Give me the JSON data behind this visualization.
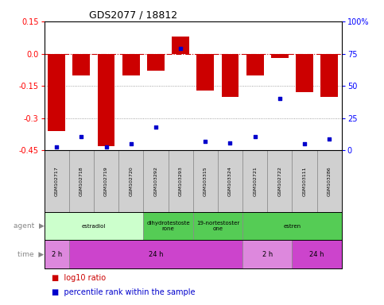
{
  "title": "GDS2077 / 18812",
  "samples": [
    "GSM102717",
    "GSM102718",
    "GSM102719",
    "GSM102720",
    "GSM103292",
    "GSM103293",
    "GSM103315",
    "GSM103324",
    "GSM102721",
    "GSM102722",
    "GSM103111",
    "GSM103286"
  ],
  "log10_ratio": [
    -0.36,
    -0.1,
    -0.43,
    -0.1,
    -0.08,
    0.08,
    -0.17,
    -0.2,
    -0.1,
    -0.02,
    -0.18,
    -0.2
  ],
  "percentile_rank": [
    3,
    11,
    3,
    5,
    18,
    79,
    7,
    6,
    11,
    40,
    5,
    9
  ],
  "ylim_left": [
    -0.45,
    0.15
  ],
  "ylim_right": [
    0,
    100
  ],
  "bar_color": "#cc0000",
  "dot_color": "#0000cc",
  "zero_line_color": "#cc0000",
  "grid_color": "#888888",
  "agent_groups": [
    {
      "label": "estradiol",
      "start": 0,
      "end": 4,
      "color": "#ccffcc"
    },
    {
      "label": "dihydrotestoste\nrone",
      "start": 4,
      "end": 6,
      "color": "#55cc55"
    },
    {
      "label": "19-nortestoster\none",
      "start": 6,
      "end": 8,
      "color": "#55cc55"
    },
    {
      "label": "estren",
      "start": 8,
      "end": 12,
      "color": "#55cc55"
    }
  ],
  "time_groups": [
    {
      "label": "2 h",
      "start": 0,
      "end": 1,
      "color": "#dd88dd"
    },
    {
      "label": "24 h",
      "start": 1,
      "end": 8,
      "color": "#cc44cc"
    },
    {
      "label": "2 h",
      "start": 8,
      "end": 10,
      "color": "#dd88dd"
    },
    {
      "label": "24 h",
      "start": 10,
      "end": 12,
      "color": "#cc44cc"
    }
  ],
  "left_yticks": [
    -0.45,
    -0.3,
    -0.15,
    0.0,
    0.15
  ],
  "right_yticks": [
    0,
    25,
    50,
    75,
    100
  ],
  "gsm_bg": "#d0d0d0"
}
